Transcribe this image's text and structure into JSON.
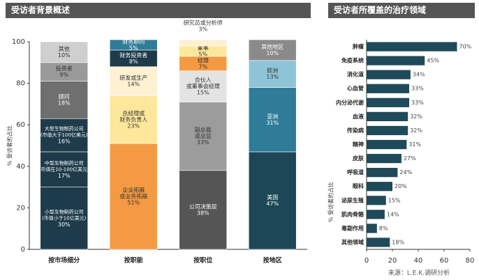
{
  "chart_data": [
    {
      "type": "stacked-bar",
      "title": "受访者背景概述",
      "y_label": "% 受访者的占比",
      "categories": [
        "按市场细分",
        "按职能",
        "按职位",
        "按地区"
      ],
      "ylim": [
        0,
        100
      ],
      "yticks": [
        0,
        20,
        40,
        60,
        80,
        100
      ],
      "stacks": [
        {
          "segments": [
            {
              "lines": [
                "小型生物制药公司",
                "(市值小于10亿美元)"
              ],
              "value": 30,
              "value_label": "30%",
              "color": "#1d3b4a"
            },
            {
              "lines": [
                "中型生物制药公司",
                "(市值在10-100亿美元)"
              ],
              "value": 17,
              "value_label": "17%",
              "color": "#1d3b4a"
            },
            {
              "lines": [
                "大型生物制药公司",
                "(市值大于100亿美元)"
              ],
              "value": 16,
              "value_label": "16%",
              "color": "#1d3b4a"
            },
            {
              "lines": [
                "顾问"
              ],
              "value": 18,
              "value_label": "18%",
              "color": "#6f6f6f"
            },
            {
              "lines": [
                "投资者"
              ],
              "value": 9,
              "value_label": "9%",
              "color": "#9a9a9a"
            },
            {
              "lines": [
                "其他"
              ],
              "value": 10,
              "value_label": "10%",
              "color": "#cfcfcf"
            }
          ]
        },
        {
          "segments": [
            {
              "lines": [
                "企业拓展",
                "或业务拓展"
              ],
              "value": 51,
              "value_label": "51%",
              "color": "#f39a43"
            },
            {
              "lines": [
                "总经理或",
                "财务负责人"
              ],
              "value": 23,
              "value_label": "23%",
              "color": "#fde79a"
            },
            {
              "lines": [
                "研发或生产"
              ],
              "value": 14,
              "value_label": "14%",
              "color": "#fdf1d2"
            },
            {
              "lines": [
                "财务投资者"
              ],
              "value": 8,
              "value_label": "8%",
              "color": "#1d3b4a"
            },
            {
              "lines": [
                "财务顾问"
              ],
              "value": 5,
              "value_label": "5%",
              "color": "#2f7c98"
            }
          ]
        },
        {
          "segments": [
            {
              "lines": [
                "公司决策层"
              ],
              "value": 38,
              "value_label": "38%",
              "color": "#555555"
            },
            {
              "lines": [
                "副总裁",
                "或总监"
              ],
              "value": 33,
              "value_label": "33%",
              "color": "#9c9c9c"
            },
            {
              "lines": [
                "合伙人",
                "或董事会经理"
              ],
              "value": 15,
              "value_label": "15%",
              "color": "#e3e3e3"
            },
            {
              "lines": [
                "经理"
              ],
              "value": 7,
              "value_label": "7%",
              "color": "#f39a43"
            },
            {
              "lines": [
                "董事"
              ],
              "value": 5,
              "value_label": "5%",
              "color": "#fde79a"
            },
            {
              "lines": [
                "研究员或分析师"
              ],
              "value": 3,
              "value_label": "3%",
              "color": "#fdf1d2",
              "label_outside": true
            }
          ]
        },
        {
          "segments": [
            {
              "lines": [
                "美国"
              ],
              "value": 47,
              "value_label": "47%",
              "color": "#1d4756"
            },
            {
              "lines": [
                "亚洲"
              ],
              "value": 31,
              "value_label": "31%",
              "color": "#2f7c98"
            },
            {
              "lines": [
                "欧洲"
              ],
              "value": 13,
              "value_label": "13%",
              "color": "#8fc4d8"
            },
            {
              "lines": [
                "其他地区"
              ],
              "value": 10,
              "value_label": "10%",
              "color": "#8a8a8a"
            }
          ]
        }
      ]
    },
    {
      "type": "hbar",
      "title": "受访者所覆盖的治疗领域",
      "y_label": "% 受访者的占比",
      "categories": [
        "肿瘤",
        "免疫系统",
        "消化道",
        "心血管",
        "内分泌代谢",
        "血液",
        "传染病",
        "精神",
        "皮肤",
        "呼吸道",
        "眼科",
        "泌尿生殖",
        "肌肉骨骼",
        "毒副作用",
        "其他领域"
      ],
      "values": [
        70,
        45,
        34,
        33,
        33,
        32,
        32,
        31,
        27,
        24,
        20,
        15,
        14,
        8,
        18
      ],
      "value_labels": [
        "70%",
        "45%",
        "34%",
        "33%",
        "33%",
        "32%",
        "32%",
        "31%",
        "27%",
        "24%",
        "20%",
        "15%",
        "14%",
        "8%",
        "18%"
      ],
      "color": "#1f4a5a",
      "xlim": [
        0,
        80
      ],
      "xticks": [
        0,
        20,
        40,
        60,
        80
      ],
      "source": "来源：L.E.K.调研分析"
    }
  ]
}
